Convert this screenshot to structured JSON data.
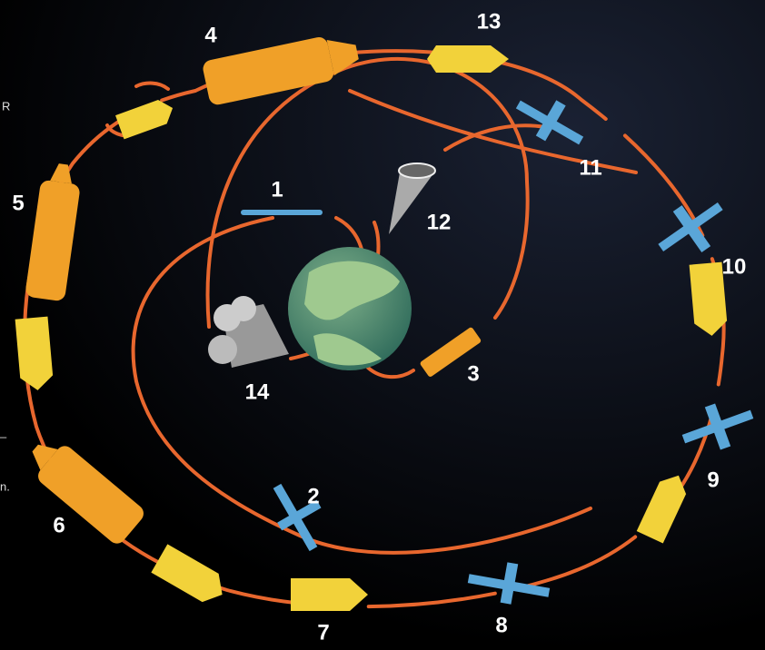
{
  "labels": [
    "1",
    "2",
    "3",
    "4",
    "5",
    "6",
    "7",
    "8",
    "9",
    "10",
    "11",
    "12",
    "13",
    "14"
  ],
  "edge_text": [
    "R",
    "–",
    "n."
  ]
}
